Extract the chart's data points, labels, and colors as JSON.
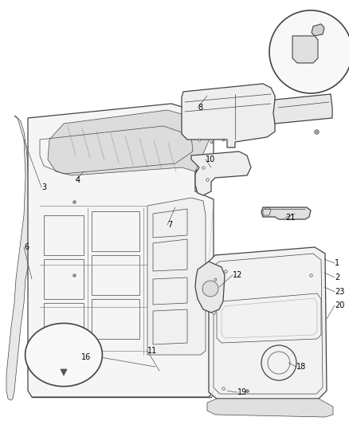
{
  "bg_color": "#ffffff",
  "line_color": "#444444",
  "label_color": "#000000",
  "figsize": [
    4.38,
    5.33
  ],
  "dpi": 100,
  "lw_main": 0.9,
  "lw_thin": 0.5,
  "lw_thick": 1.3,
  "label_fontsize": 7.0
}
